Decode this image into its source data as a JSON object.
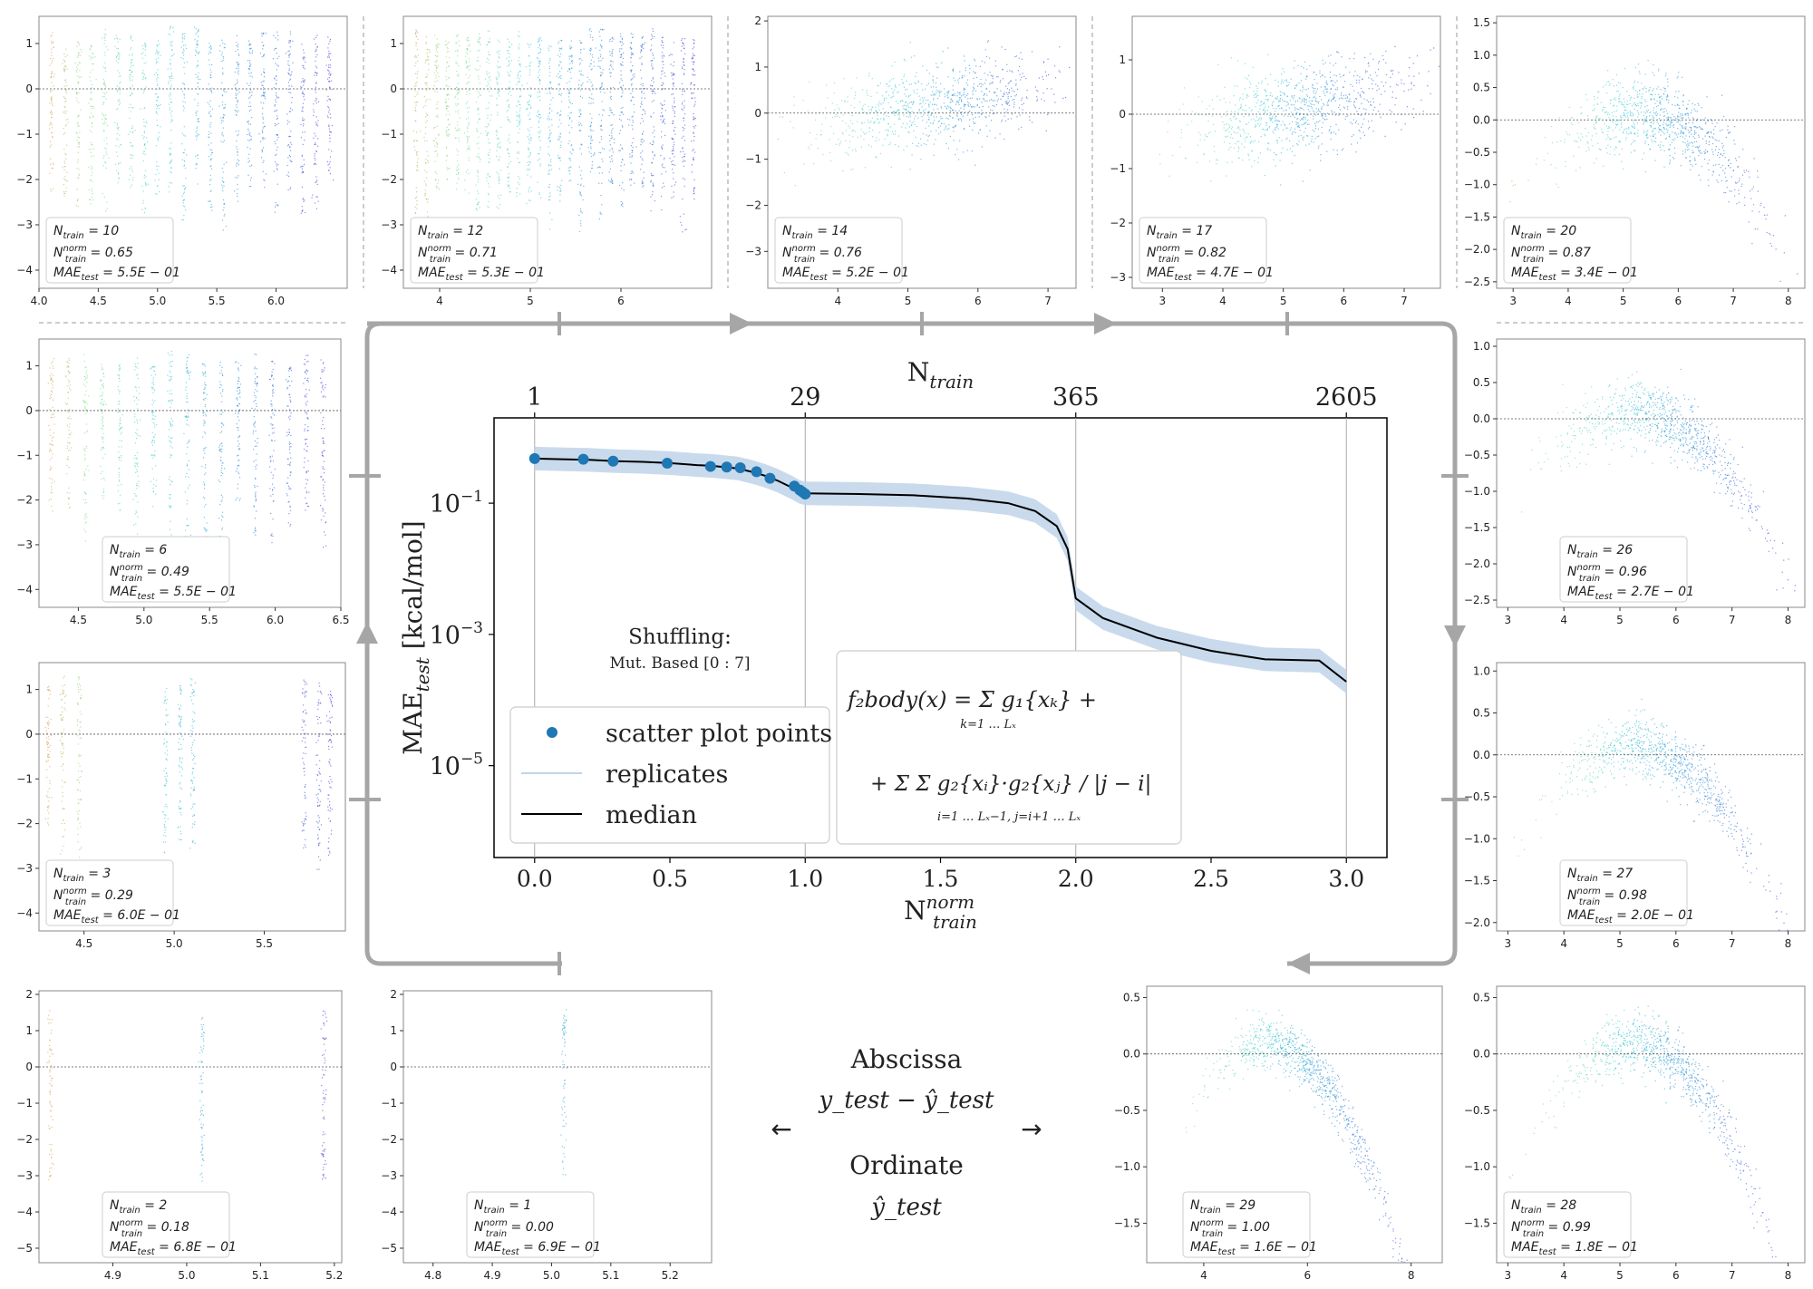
{
  "main_chart": {
    "type": "line",
    "xlabel": "N_train^norm",
    "top_axis_label": "N_train",
    "ylabel": "MAE_test [kcal/mol]",
    "x_ticks": [
      "0.0",
      "0.5",
      "1.0",
      "1.5",
      "2.0",
      "2.5",
      "3.0"
    ],
    "top_ticks": [
      {
        "at": 0.0,
        "label": "1"
      },
      {
        "at": 1.0,
        "label": "29"
      },
      {
        "at": 2.0,
        "label": "365"
      },
      {
        "at": 3.0,
        "label": "2605"
      }
    ],
    "y_ticks": [
      {
        "exp": -1,
        "label": "10",
        "sup": "−1"
      },
      {
        "exp": -3,
        "label": "10",
        "sup": "−3"
      },
      {
        "exp": -5,
        "label": "10",
        "sup": "−5"
      }
    ],
    "xlim": [
      -0.15,
      3.15
    ],
    "ylim_log10": [
      -6.4,
      0.3
    ],
    "shuffling_title": "Shuffling:",
    "shuffling_sub": "Mut. Based [0 : 7]",
    "legend": {
      "scatter": "scatter plot points",
      "replicates": "replicates",
      "median": "median"
    },
    "formula": {
      "lhs": "f₂body(x) = ",
      "sum1": "Σ g₁{xₖ} +",
      "sum1_lim": "k=1 … Lₓ",
      "sum2": "+ Σ Σ  g₂{xᵢ}·g₂{xⱼ} / |j − i|",
      "sum2_lim": "i=1 … Lₓ−1, j=i+1 … Lₓ"
    },
    "median_line": [
      [
        0.0,
        -0.32
      ],
      [
        0.1,
        -0.33
      ],
      [
        0.2,
        -0.34
      ],
      [
        0.3,
        -0.36
      ],
      [
        0.4,
        -0.37
      ],
      [
        0.5,
        -0.39
      ],
      [
        0.6,
        -0.42
      ],
      [
        0.65,
        -0.43
      ],
      [
        0.7,
        -0.45
      ],
      [
        0.75,
        -0.47
      ],
      [
        0.8,
        -0.52
      ],
      [
        0.85,
        -0.58
      ],
      [
        0.9,
        -0.66
      ],
      [
        0.95,
        -0.76
      ],
      [
        0.98,
        -0.83
      ],
      [
        1.0,
        -0.85
      ],
      [
        1.2,
        -0.86
      ],
      [
        1.4,
        -0.88
      ],
      [
        1.6,
        -0.93
      ],
      [
        1.75,
        -1.0
      ],
      [
        1.85,
        -1.12
      ],
      [
        1.93,
        -1.35
      ],
      [
        1.97,
        -1.7
      ],
      [
        2.0,
        -2.45
      ],
      [
        2.1,
        -2.75
      ],
      [
        2.3,
        -3.05
      ],
      [
        2.5,
        -3.25
      ],
      [
        2.7,
        -3.38
      ],
      [
        2.9,
        -3.4
      ],
      [
        3.0,
        -3.72
      ]
    ],
    "band_width_log10": 0.18,
    "scatter_points": [
      [
        0.0,
        -0.32
      ],
      [
        0.18,
        -0.33
      ],
      [
        0.29,
        -0.36
      ],
      [
        0.49,
        -0.39
      ],
      [
        0.65,
        -0.44
      ],
      [
        0.71,
        -0.45
      ],
      [
        0.76,
        -0.46
      ],
      [
        0.82,
        -0.52
      ],
      [
        0.87,
        -0.62
      ],
      [
        0.96,
        -0.74
      ],
      [
        0.98,
        -0.8
      ],
      [
        0.99,
        -0.83
      ],
      [
        1.0,
        -0.86
      ]
    ]
  },
  "panels": [
    {
      "n": "10",
      "norm": "0.65",
      "mae": "5.5E − 01",
      "xticks": [
        "4.0",
        "4.5",
        "5.0",
        "5.5",
        "6.0"
      ],
      "xt_pos": [
        4.0,
        4.5,
        5.0,
        5.5,
        6.0
      ],
      "xlim": [
        4.0,
        6.6
      ],
      "yticks": [
        "1",
        "0",
        "−1",
        "−2",
        "−3",
        "−4"
      ],
      "yt_pos": [
        1,
        0,
        -1,
        -2,
        -3,
        -4
      ],
      "ylim": [
        -4.4,
        1.6
      ],
      "kind": "columns",
      "nc": 22,
      "shape": "wide"
    },
    {
      "n": "12",
      "norm": "0.71",
      "mae": "5.3E − 01",
      "xticks": [
        "4",
        "5",
        "6"
      ],
      "xt_pos": [
        4,
        5,
        6
      ],
      "xlim": [
        3.6,
        7.0
      ],
      "yticks": [
        "1",
        "0",
        "−1",
        "−2",
        "−3",
        "−4"
      ],
      "yt_pos": [
        1,
        0,
        -1,
        -2,
        -3,
        -4
      ],
      "ylim": [
        -4.4,
        1.6
      ],
      "kind": "columns",
      "nc": 28,
      "shape": "wide"
    },
    {
      "n": "14",
      "norm": "0.76",
      "mae": "5.2E − 01",
      "xticks": [
        "4",
        "5",
        "6",
        "7"
      ],
      "xt_pos": [
        4,
        5,
        6,
        7
      ],
      "xlim": [
        3.0,
        7.4
      ],
      "yticks": [
        "2",
        "1",
        "0",
        "−1",
        "−2",
        "−3"
      ],
      "yt_pos": [
        2,
        1,
        0,
        -1,
        -2,
        -3
      ],
      "ylim": [
        -3.8,
        2.1
      ],
      "kind": "cloud",
      "spread": 0.9,
      "shape": "rise"
    },
    {
      "n": "17",
      "norm": "0.82",
      "mae": "4.7E − 01",
      "xticks": [
        "3",
        "4",
        "5",
        "6",
        "7"
      ],
      "xt_pos": [
        3,
        4,
        5,
        6,
        7
      ],
      "xlim": [
        2.5,
        7.6
      ],
      "yticks": [
        "1",
        "0",
        "−1",
        "−2",
        "−3"
      ],
      "yt_pos": [
        1,
        0,
        -1,
        -2,
        -3
      ],
      "ylim": [
        -3.2,
        1.8
      ],
      "kind": "cloud",
      "spread": 0.8,
      "shape": "rise"
    },
    {
      "n": "20",
      "norm": "0.87",
      "mae": "3.4E − 01",
      "xticks": [
        "3",
        "4",
        "5",
        "6",
        "7",
        "8"
      ],
      "xt_pos": [
        3,
        4,
        5,
        6,
        7,
        8
      ],
      "xlim": [
        2.7,
        8.3
      ],
      "yticks": [
        "1.5",
        "1.0",
        "0.5",
        "0.0",
        "−0.5",
        "−1.0",
        "−1.5",
        "−2.0",
        "−2.5"
      ],
      "yt_pos": [
        1.5,
        1.0,
        0.5,
        0.0,
        -0.5,
        -1.0,
        -1.5,
        -2.0,
        -2.5
      ],
      "ylim": [
        -2.6,
        1.6
      ],
      "kind": "cloud",
      "spread": 0.6,
      "shape": "arch"
    },
    {
      "n": "6",
      "norm": "0.49",
      "mae": "5.5E − 01",
      "xticks": [
        "4.5",
        "5.0",
        "5.5",
        "6.0",
        "6.5"
      ],
      "xt_pos": [
        4.5,
        5.0,
        5.5,
        6.0,
        6.5
      ],
      "xlim": [
        4.2,
        6.5
      ],
      "yticks": [
        "1",
        "0",
        "−1",
        "−2",
        "−3",
        "−4"
      ],
      "yt_pos": [
        1,
        0,
        -1,
        -2,
        -3,
        -4
      ],
      "ylim": [
        -4.4,
        1.6
      ],
      "kind": "columns",
      "nc": 17,
      "shape": "wide"
    },
    {
      "n": "3",
      "norm": "0.29",
      "mae": "6.0E − 01",
      "xticks": [
        "4.5",
        "5.0",
        "5.5"
      ],
      "xt_pos": [
        4.5,
        5.0,
        5.5
      ],
      "xlim": [
        4.25,
        5.95
      ],
      "yticks": [
        "1",
        "0",
        "−1",
        "−2",
        "−3",
        "−4"
      ],
      "yt_pos": [
        1,
        0,
        -1,
        -2,
        -3,
        -4
      ],
      "ylim": [
        -4.4,
        1.6
      ],
      "kind": "columns",
      "nc": 9,
      "shape": "groups"
    },
    {
      "n": "26",
      "norm": "0.96",
      "mae": "2.7E − 01",
      "xticks": [
        "3",
        "4",
        "5",
        "6",
        "7",
        "8"
      ],
      "xt_pos": [
        3,
        4,
        5,
        6,
        7,
        8
      ],
      "xlim": [
        2.8,
        8.3
      ],
      "yticks": [
        "1.0",
        "0.5",
        "0.0",
        "−0.5",
        "−1.0",
        "−1.5",
        "−2.0",
        "−2.5"
      ],
      "yt_pos": [
        1.0,
        0.5,
        0.0,
        -0.5,
        -1.0,
        -1.5,
        -2.0,
        -2.5
      ],
      "ylim": [
        -2.6,
        1.1
      ],
      "kind": "cloud",
      "spread": 0.45,
      "shape": "arch"
    },
    {
      "n": "27",
      "norm": "0.98",
      "mae": "2.0E − 01",
      "xticks": [
        "3",
        "4",
        "5",
        "6",
        "7",
        "8"
      ],
      "xt_pos": [
        3,
        4,
        5,
        6,
        7,
        8
      ],
      "xlim": [
        2.8,
        8.3
      ],
      "yticks": [
        "1.0",
        "0.5",
        "0.0",
        "−0.5",
        "−1.0",
        "−1.5",
        "−2.0"
      ],
      "yt_pos": [
        1.0,
        0.5,
        0.0,
        -0.5,
        -1.0,
        -1.5,
        -2.0
      ],
      "ylim": [
        -2.1,
        1.1
      ],
      "kind": "cloud",
      "spread": 0.35,
      "shape": "arch"
    },
    {
      "n": "2",
      "norm": "0.18",
      "mae": "6.8E − 01",
      "xticks": [
        "4.9",
        "5.0",
        "5.1",
        "5.2"
      ],
      "xt_pos": [
        4.9,
        5.0,
        5.1,
        5.2
      ],
      "xlim": [
        4.8,
        5.21
      ],
      "yticks": [
        "2",
        "1",
        "0",
        "−1",
        "−2",
        "−3",
        "−4",
        "−5"
      ],
      "yt_pos": [
        2,
        1,
        0,
        -1,
        -2,
        -3,
        -4,
        -5
      ],
      "ylim": [
        -5.4,
        2.1
      ],
      "kind": "columns",
      "nc": 3,
      "shape": "fixed"
    },
    {
      "n": "1",
      "norm": "0.00",
      "mae": "6.9E − 01",
      "xticks": [
        "4.8",
        "4.9",
        "5.0",
        "5.1",
        "5.2"
      ],
      "xt_pos": [
        4.8,
        4.9,
        5.0,
        5.1,
        5.2
      ],
      "xlim": [
        4.75,
        5.27
      ],
      "yticks": [
        "2",
        "1",
        "0",
        "−1",
        "−2",
        "−3",
        "−4",
        "−5"
      ],
      "yt_pos": [
        2,
        1,
        0,
        -1,
        -2,
        -3,
        -4,
        -5
      ],
      "ylim": [
        -5.4,
        2.1
      ],
      "kind": "columns",
      "nc": 1,
      "shape": "single"
    },
    {
      "n": "29",
      "norm": "1.00",
      "mae": "1.6E − 01",
      "xticks": [
        "4",
        "6",
        "8"
      ],
      "xt_pos": [
        4,
        6,
        8
      ],
      "xlim": [
        2.9,
        8.6
      ],
      "yticks": [
        "0.5",
        "0.0",
        "−0.5",
        "−1.0",
        "−1.5"
      ],
      "yt_pos": [
        0.5,
        0.0,
        -0.5,
        -1.0,
        -1.5
      ],
      "ylim": [
        -1.85,
        0.6
      ],
      "kind": "cloud",
      "spread": 0.22,
      "shape": "arch"
    },
    {
      "n": "28",
      "norm": "0.99",
      "mae": "1.8E − 01",
      "xticks": [
        "3",
        "4",
        "5",
        "6",
        "7",
        "8"
      ],
      "xt_pos": [
        3,
        4,
        5,
        6,
        7,
        8
      ],
      "xlim": [
        2.8,
        8.3
      ],
      "yticks": [
        "0.5",
        "0.0",
        "−0.5",
        "−1.0",
        "−1.5"
      ],
      "yt_pos": [
        0.5,
        0.0,
        -0.5,
        -1.0,
        -1.5
      ],
      "ylim": [
        -1.85,
        0.6
      ],
      "kind": "cloud",
      "spread": 0.25,
      "shape": "arch"
    }
  ],
  "labels": {
    "n_prefix": "N",
    "n_sub": "train",
    "norm_sup": "norm",
    "mae_prefix": "MAE",
    "mae_sub": "test"
  },
  "caption": {
    "abscissa": "Abscissa",
    "abscissa_expr": "y_test − ŷ_test",
    "ordinate": "Ordinate",
    "ordinate_expr": "ŷ_test",
    "left_arrow": "←",
    "right_arrow": "→"
  },
  "colors": {
    "band": "#bfd4ea",
    "scatter": "#1f77b4",
    "median": "#000000",
    "flow_arrow": "#a6a6a6"
  }
}
